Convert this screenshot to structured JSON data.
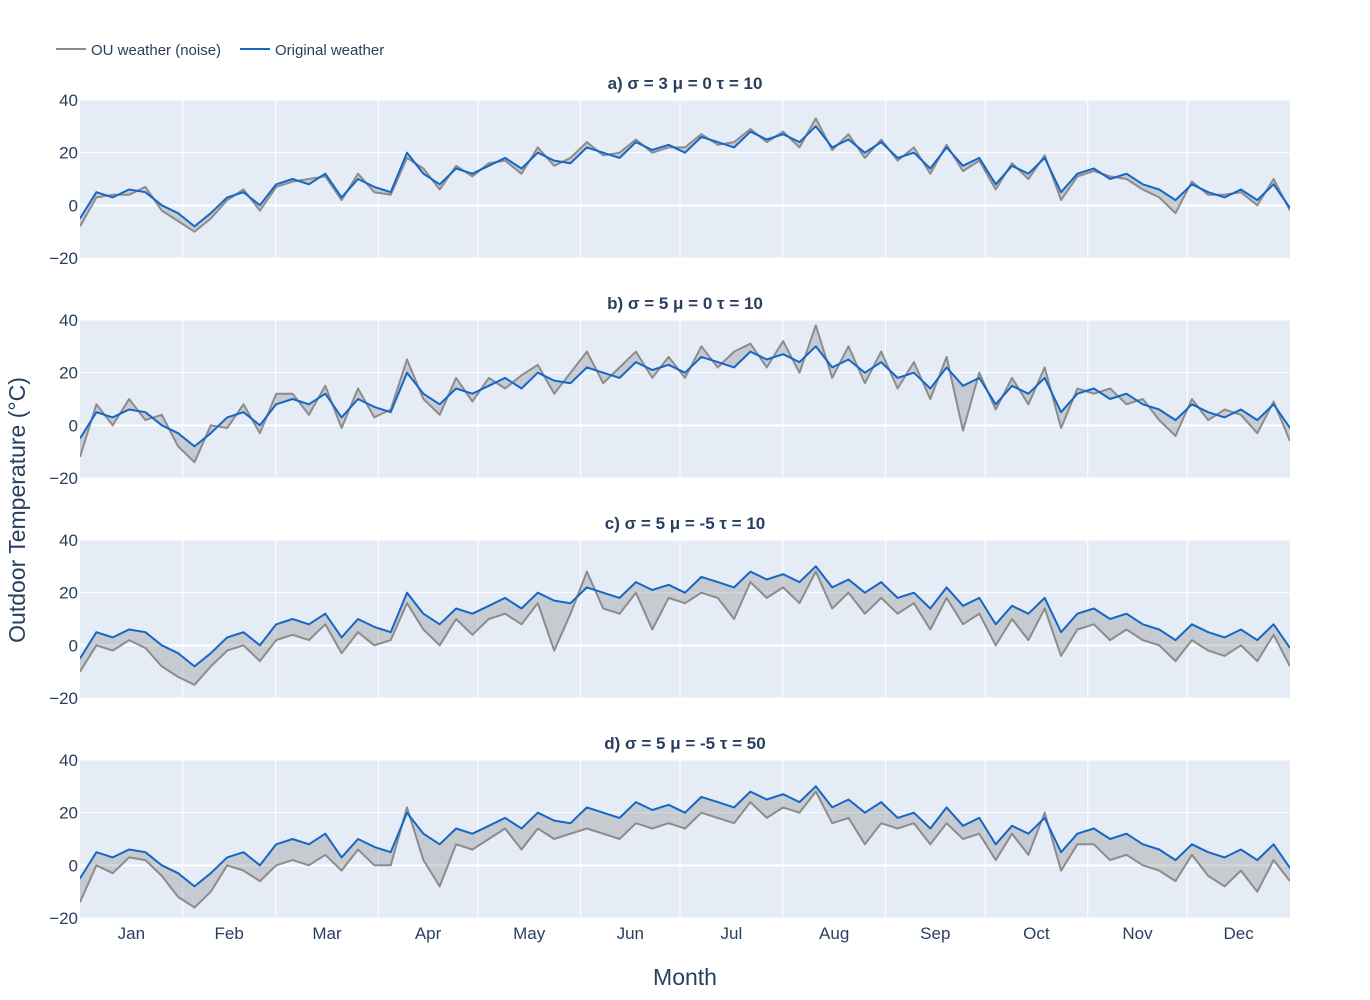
{
  "chart_data": {
    "type": "line",
    "legend": [
      "OU weather (noise)",
      "Original weather"
    ],
    "legend_placement": "top-left",
    "xlabel": "Month",
    "ylabel": "Outdoor Temperature (°C)",
    "x_range_days": [
      0,
      365
    ],
    "x_ticks": [
      "Jan",
      "Feb",
      "Mar",
      "Apr",
      "May",
      "Jun",
      "Jul",
      "Aug",
      "Sep",
      "Oct",
      "Nov",
      "Dec"
    ],
    "month_start_days": [
      0,
      31,
      59,
      90,
      120,
      151,
      181,
      212,
      243,
      273,
      304,
      334,
      365
    ],
    "ylim": [
      -20,
      40
    ],
    "y_ticks": [
      40,
      20,
      0,
      -20
    ],
    "y_tick_labels": [
      "40",
      "20",
      "0",
      "−20"
    ],
    "colors": {
      "ou": "#8c8c8c",
      "original": "#1666c5",
      "fill": "rgba(120,120,120,0.28)",
      "plot_bg": "#E5ECF6"
    },
    "original": [
      -5,
      5,
      3,
      6,
      5,
      0,
      -3,
      -8,
      -3,
      3,
      5,
      0,
      8,
      10,
      8,
      12,
      3,
      10,
      7,
      5,
      20,
      12,
      8,
      14,
      12,
      15,
      18,
      14,
      20,
      17,
      16,
      22,
      20,
      18,
      24,
      21,
      23,
      20,
      26,
      24,
      22,
      28,
      25,
      27,
      24,
      30,
      22,
      25,
      20,
      24,
      18,
      20,
      14,
      22,
      15,
      18,
      8,
      15,
      12,
      18,
      5,
      12,
      14,
      10,
      12,
      8,
      6,
      2,
      8,
      5,
      3,
      6,
      2,
      8,
      -1
    ],
    "subplots": [
      {
        "title": "a) σ = 3    μ = 0    τ = 10",
        "ou": [
          -8,
          3,
          4,
          4,
          7,
          -2,
          -6,
          -10,
          -5,
          2,
          6,
          -2,
          7,
          9,
          10,
          11,
          2,
          12,
          5,
          4,
          18,
          14,
          6,
          15,
          11,
          16,
          17,
          12,
          22,
          15,
          18,
          24,
          19,
          20,
          25,
          20,
          22,
          22,
          27,
          23,
          24,
          29,
          24,
          28,
          22,
          33,
          21,
          27,
          18,
          25,
          17,
          22,
          12,
          23,
          13,
          17,
          6,
          16,
          10,
          19,
          2,
          11,
          13,
          11,
          10,
          6,
          3,
          -3,
          9,
          4,
          4,
          5,
          0,
          10,
          -2
        ]
      },
      {
        "title": "b) σ = 5    μ = 0    τ = 10",
        "ou": [
          -12,
          8,
          0,
          10,
          2,
          4,
          -8,
          -14,
          0,
          -1,
          8,
          -3,
          12,
          12,
          4,
          15,
          -1,
          14,
          3,
          6,
          25,
          10,
          4,
          18,
          9,
          18,
          14,
          19,
          23,
          12,
          20,
          28,
          16,
          22,
          28,
          18,
          26,
          18,
          30,
          22,
          28,
          31,
          22,
          32,
          20,
          38,
          18,
          30,
          16,
          28,
          14,
          24,
          10,
          26,
          -2,
          20,
          6,
          18,
          8,
          22,
          -1,
          14,
          12,
          14,
          8,
          10,
          2,
          -4,
          10,
          2,
          6,
          4,
          -3,
          9,
          -6
        ]
      },
      {
        "title": "c) σ = 5    μ = -5    τ = 10",
        "ou": [
          -10,
          0,
          -2,
          2,
          -1,
          -8,
          -12,
          -15,
          -8,
          -2,
          0,
          -6,
          2,
          4,
          2,
          8,
          -3,
          5,
          0,
          2,
          16,
          6,
          0,
          10,
          4,
          10,
          12,
          8,
          16,
          -2,
          12,
          28,
          14,
          12,
          20,
          6,
          18,
          16,
          20,
          18,
          10,
          24,
          18,
          22,
          16,
          28,
          14,
          20,
          12,
          18,
          12,
          16,
          6,
          18,
          8,
          12,
          0,
          10,
          2,
          14,
          -4,
          6,
          8,
          2,
          6,
          2,
          0,
          -6,
          2,
          -2,
          -4,
          0,
          -6,
          4,
          -8
        ]
      },
      {
        "title": "d) σ = 5    μ = -5    τ = 50",
        "ou": [
          -14,
          0,
          -3,
          3,
          2,
          -4,
          -12,
          -16,
          -10,
          0,
          -2,
          -6,
          0,
          2,
          0,
          4,
          -2,
          6,
          0,
          0,
          22,
          2,
          -8,
          8,
          6,
          10,
          14,
          6,
          14,
          10,
          12,
          14,
          12,
          10,
          16,
          14,
          16,
          14,
          20,
          18,
          16,
          24,
          18,
          22,
          20,
          28,
          16,
          18,
          8,
          16,
          14,
          16,
          8,
          16,
          10,
          12,
          2,
          12,
          4,
          20,
          -2,
          8,
          8,
          2,
          4,
          0,
          -2,
          -6,
          4,
          -4,
          -8,
          -2,
          -10,
          2,
          -6
        ]
      }
    ]
  }
}
